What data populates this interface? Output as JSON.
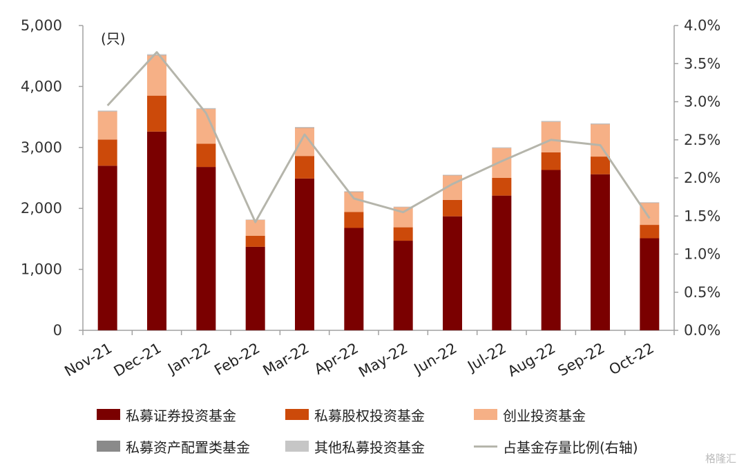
{
  "chart_data": {
    "type": "bar",
    "stacked": true,
    "categories": [
      "Nov-21",
      "Dec-21",
      "Jan-22",
      "Feb-22",
      "Mar-22",
      "Apr-22",
      "May-22",
      "Jun-22",
      "Jul-22",
      "Aug-22",
      "Sep-22",
      "Oct-22"
    ],
    "unit_label": "(只)",
    "series": [
      {
        "name": "私募证券投资基金",
        "color": "#7a0000",
        "axis": "left",
        "values": [
          2700,
          3260,
          2680,
          1370,
          2490,
          1680,
          1470,
          1870,
          2210,
          2630,
          2560,
          1510
        ]
      },
      {
        "name": "私募股权投资基金",
        "color": "#cc4a0a",
        "axis": "left",
        "values": [
          430,
          590,
          380,
          180,
          370,
          260,
          220,
          270,
          290,
          290,
          290,
          220
        ]
      },
      {
        "name": "创业投资基金",
        "color": "#f6b086",
        "axis": "left",
        "values": [
          460,
          660,
          570,
          260,
          460,
          330,
          330,
          400,
          490,
          500,
          530,
          360
        ]
      },
      {
        "name": "私募资产配置类基金",
        "color": "#8a8a8a",
        "axis": "left",
        "values": [
          5,
          5,
          5,
          3,
          5,
          4,
          3,
          4,
          4,
          5,
          5,
          4
        ]
      },
      {
        "name": "其他私募投资基金",
        "color": "#c6c6c6",
        "axis": "left",
        "values": [
          10,
          15,
          10,
          5,
          10,
          8,
          6,
          8,
          8,
          10,
          10,
          8
        ]
      },
      {
        "name": "占基金存量比例(右轴)",
        "type": "line",
        "color": "#b5b5ab",
        "axis": "right",
        "values": [
          2.95,
          3.65,
          2.85,
          1.42,
          2.57,
          1.73,
          1.55,
          1.92,
          2.22,
          2.5,
          2.43,
          1.47
        ]
      }
    ],
    "y_left": {
      "min": 0,
      "max": 5000,
      "ticks": [
        0,
        1000,
        2000,
        3000,
        4000,
        5000
      ],
      "tick_labels": [
        "0",
        "1,000",
        "2,000",
        "3,000",
        "4,000",
        "5,000"
      ]
    },
    "y_right": {
      "min": 0,
      "max": 4.0,
      "ticks": [
        0,
        0.5,
        1.0,
        1.5,
        2.0,
        2.5,
        3.0,
        3.5,
        4.0
      ],
      "tick_labels": [
        "0.0%",
        "0.5%",
        "1.0%",
        "1.5%",
        "2.0%",
        "2.5%",
        "3.0%",
        "3.5%",
        "4.0%"
      ]
    },
    "grid": false,
    "legend_position": "bottom"
  },
  "watermark": "格隆汇"
}
